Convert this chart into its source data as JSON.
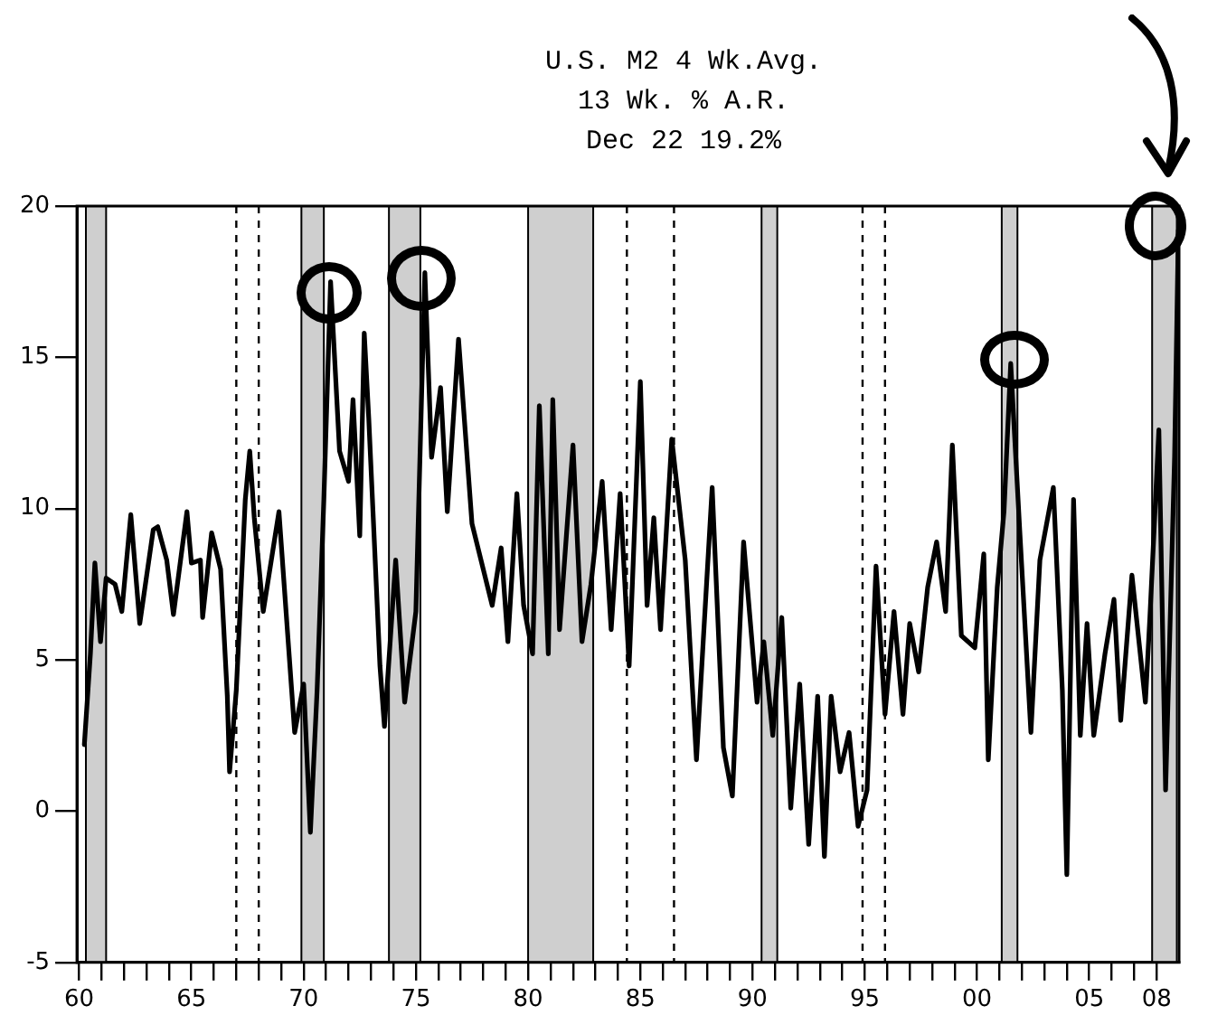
{
  "chart_data": {
    "type": "line",
    "title": "U.S. M2 4 Wk.Avg.",
    "subtitle": "13 Wk. % A.R.",
    "annotations": [
      "Dec 22  19.2%"
    ],
    "xlim": [
      1959.9,
      2009.0
    ],
    "ylim": [
      -5,
      20
    ],
    "yticks": [
      -5,
      0,
      5,
      10,
      15,
      20
    ],
    "xticks": [
      {
        "value": 1960,
        "label": "60"
      },
      {
        "value": 1961,
        "label": null
      },
      {
        "value": 1962,
        "label": null
      },
      {
        "value": 1963,
        "label": null
      },
      {
        "value": 1964,
        "label": null
      },
      {
        "value": 1965,
        "label": "65"
      },
      {
        "value": 1966,
        "label": null
      },
      {
        "value": 1967,
        "label": null
      },
      {
        "value": 1968,
        "label": null
      },
      {
        "value": 1969,
        "label": null
      },
      {
        "value": 1970,
        "label": "70"
      },
      {
        "value": 1971,
        "label": null
      },
      {
        "value": 1972,
        "label": null
      },
      {
        "value": 1973,
        "label": null
      },
      {
        "value": 1974,
        "label": null
      },
      {
        "value": 1975,
        "label": "75"
      },
      {
        "value": 1976,
        "label": null
      },
      {
        "value": 1977,
        "label": null
      },
      {
        "value": 1978,
        "label": null
      },
      {
        "value": 1979,
        "label": null
      },
      {
        "value": 1980,
        "label": "80"
      },
      {
        "value": 1981,
        "label": null
      },
      {
        "value": 1982,
        "label": null
      },
      {
        "value": 1983,
        "label": null
      },
      {
        "value": 1984,
        "label": null
      },
      {
        "value": 1985,
        "label": "85"
      },
      {
        "value": 1986,
        "label": null
      },
      {
        "value": 1987,
        "label": null
      },
      {
        "value": 1988,
        "label": null
      },
      {
        "value": 1989,
        "label": null
      },
      {
        "value": 1990,
        "label": "90"
      },
      {
        "value": 1991,
        "label": null
      },
      {
        "value": 1992,
        "label": null
      },
      {
        "value": 1993,
        "label": null
      },
      {
        "value": 1994,
        "label": null
      },
      {
        "value": 1995,
        "label": "95"
      },
      {
        "value": 1996,
        "label": null
      },
      {
        "value": 1997,
        "label": null
      },
      {
        "value": 1998,
        "label": null
      },
      {
        "value": 1999,
        "label": null
      },
      {
        "value": 2000,
        "label": "00"
      },
      {
        "value": 2001,
        "label": null
      },
      {
        "value": 2002,
        "label": null
      },
      {
        "value": 2003,
        "label": null
      },
      {
        "value": 2004,
        "label": null
      },
      {
        "value": 2005,
        "label": "05"
      },
      {
        "value": 2006,
        "label": null
      },
      {
        "value": 2007,
        "label": null
      },
      {
        "value": 2008,
        "label": "08"
      }
    ],
    "grid": false,
    "legend": false,
    "marker": "none",
    "line_style": "solid",
    "series": [
      {
        "color": "#000000",
        "x": [
          1960.23,
          1960.5,
          1960.7,
          1960.95,
          1961.2,
          1961.6,
          1961.9,
          1962.3,
          1962.7,
          1963.3,
          1963.5,
          1963.9,
          1964.2,
          1964.8,
          1965.0,
          1965.4,
          1965.5,
          1965.9,
          1966.3,
          1966.6,
          1966.7,
          1967.0,
          1967.4,
          1967.6,
          1967.8,
          1968.2,
          1968.9,
          1969.6,
          1970.0,
          1970.3,
          1970.6,
          1970.9,
          1971.2,
          1971.6,
          1972.0,
          1972.2,
          1972.5,
          1972.7,
          1972.9,
          1973.4,
          1973.6,
          1974.1,
          1974.5,
          1975.0,
          1975.4,
          1975.7,
          1976.1,
          1976.4,
          1976.9,
          1977.5,
          1978.0,
          1978.4,
          1978.8,
          1979.1,
          1979.5,
          1979.8,
          1980.2,
          1980.5,
          1980.9,
          1981.1,
          1981.4,
          1982.0,
          1982.4,
          1982.8,
          1983.3,
          1983.7,
          1984.1,
          1984.5,
          1985.0,
          1985.3,
          1985.6,
          1985.9,
          1986.4,
          1987.0,
          1987.5,
          1987.8,
          1988.2,
          1988.7,
          1989.1,
          1989.6,
          1990.2,
          1990.5,
          1990.9,
          1991.3,
          1991.7,
          1992.1,
          1992.5,
          1992.9,
          1993.2,
          1993.5,
          1993.9,
          1994.3,
          1994.7,
          1995.1,
          1995.5,
          1995.9,
          1996.3,
          1996.7,
          1997.0,
          1997.4,
          1997.8,
          1998.2,
          1998.6,
          1998.9,
          1999.3,
          1999.9,
          2000.3,
          2000.5,
          2000.9,
          2001.2,
          2001.5,
          2001.9,
          2002.4,
          2002.8,
          2003.4,
          2003.8,
          2004.0,
          2004.3,
          2004.6,
          2004.9,
          2005.2,
          2005.7,
          2006.1,
          2006.4,
          2006.9,
          2007.5,
          2007.7,
          2008.1,
          2008.4,
          2008.8,
          2008.97
        ],
        "values": [
          2.2,
          5.2,
          8.2,
          5.6,
          7.7,
          7.5,
          6.6,
          9.8,
          6.2,
          9.3,
          9.4,
          8.3,
          6.5,
          9.9,
          8.2,
          8.3,
          6.4,
          9.2,
          8.0,
          3.8,
          1.3,
          4.0,
          10.3,
          11.9,
          9.7,
          6.6,
          9.9,
          2.6,
          4.2,
          -0.7,
          4.0,
          10.3,
          17.5,
          11.9,
          10.9,
          13.6,
          9.1,
          15.8,
          13.0,
          4.8,
          2.8,
          8.3,
          3.6,
          6.6,
          17.8,
          11.7,
          14.0,
          9.9,
          15.6,
          9.5,
          8.0,
          6.8,
          8.7,
          5.6,
          10.5,
          6.8,
          5.2,
          13.4,
          5.2,
          13.6,
          6.0,
          12.1,
          5.6,
          7.5,
          10.9,
          6.0,
          10.5,
          4.8,
          14.2,
          6.8,
          9.7,
          6.0,
          12.3,
          8.3,
          1.7,
          5.6,
          10.7,
          2.1,
          0.5,
          8.9,
          3.6,
          5.6,
          2.5,
          6.4,
          0.1,
          4.2,
          -1.1,
          3.8,
          -1.5,
          3.8,
          1.3,
          2.6,
          -0.5,
          0.7,
          8.1,
          3.2,
          6.6,
          3.2,
          6.2,
          4.6,
          7.4,
          8.9,
          6.6,
          12.1,
          5.8,
          5.4,
          8.5,
          1.7,
          7.4,
          9.9,
          14.8,
          9.3,
          2.6,
          8.3,
          10.7,
          4.0,
          -2.1,
          10.3,
          2.5,
          6.2,
          2.5,
          5.2,
          7.0,
          3.0,
          7.8,
          3.6,
          6.4,
          12.6,
          0.7,
          11.7,
          19.2
        ]
      }
    ],
    "bands": [
      {
        "axis": "x",
        "from": 1960.3,
        "to": 1961.2,
        "color": "#cfcfcf"
      },
      {
        "axis": "x",
        "from": 1969.9,
        "to": 1970.9,
        "color": "#cfcfcf"
      },
      {
        "axis": "x",
        "from": 1973.8,
        "to": 1975.2,
        "color": "#cfcfcf"
      },
      {
        "axis": "x",
        "from": 1980.0,
        "to": 1982.9,
        "color": "#cfcfcf"
      },
      {
        "axis": "x",
        "from": 1990.4,
        "to": 1991.1,
        "color": "#cfcfcf"
      },
      {
        "axis": "x",
        "from": 2001.1,
        "to": 2001.8,
        "color": "#cfcfcf"
      },
      {
        "axis": "x",
        "from": 2007.8,
        "to": 2008.9,
        "color": "#cfcfcf"
      }
    ],
    "ref_lines": [
      {
        "axis": "x",
        "value": 1967.0,
        "line_style": "dashed",
        "color": "#000000"
      },
      {
        "axis": "x",
        "value": 1968.0,
        "line_style": "dashed",
        "color": "#000000"
      },
      {
        "axis": "x",
        "value": 1984.4,
        "line_style": "dashed",
        "color": "#000000"
      },
      {
        "axis": "x",
        "value": 1986.5,
        "line_style": "dashed",
        "color": "#000000"
      },
      {
        "axis": "x",
        "value": 1994.9,
        "line_style": "dashed",
        "color": "#000000"
      },
      {
        "axis": "x",
        "value": 1995.9,
        "line_style": "dashed",
        "color": "#000000"
      }
    ]
  }
}
